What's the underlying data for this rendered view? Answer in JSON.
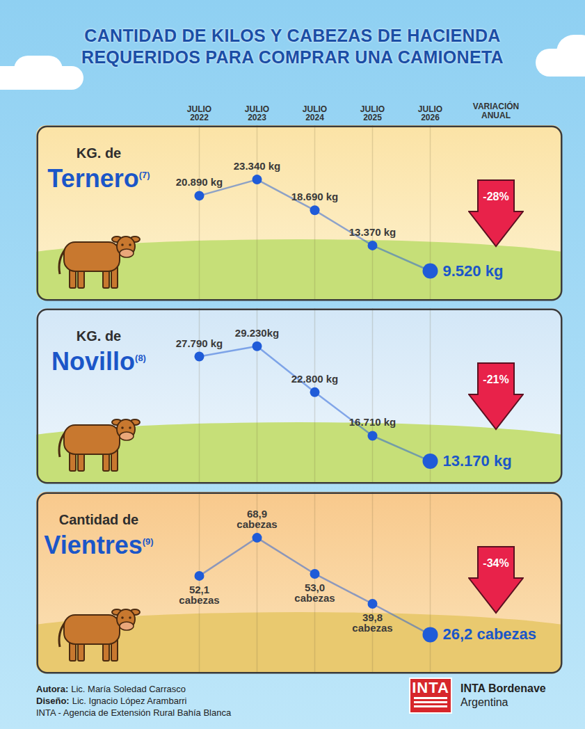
{
  "header": {
    "title": [
      "CANTIDAD DE KILOS Y CABEZAS DE HACIENDA",
      "REQUERIDOS PARA COMPRAR UNA CAMIONETA"
    ],
    "variation_header": "VARIACIÓN ANUAL"
  },
  "chart_data": [
    {
      "type": "line",
      "title_prefix": "KG. de",
      "title": "Ternero",
      "title_note": "(7)",
      "categories": [
        "JULIO 2022",
        "JULIO 2023",
        "JULIO 2024",
        "JULIO 2025",
        "JULIO 2026"
      ],
      "values": [
        20890,
        23340,
        18690,
        13370,
        9520
      ],
      "value_labels": [
        "20.890 kg",
        "23.340 kg",
        "18.690 kg",
        "13.370 kg",
        "9.520 kg"
      ],
      "data_labels": true,
      "color": "#1f5bd8",
      "marker": "circle",
      "grid": true,
      "ylim": [
        5000,
        31500
      ],
      "tick_labels": "x",
      "annual_variation": "-28%"
    },
    {
      "type": "line",
      "title_prefix": "KG. de",
      "title": "Novillo",
      "title_note": "(8)",
      "categories": [
        "JULIO 2022",
        "JULIO 2023",
        "JULIO 2024",
        "JULIO 2025",
        "JULIO 2026"
      ],
      "values": [
        27790,
        29230,
        22800,
        16710,
        13170
      ],
      "value_labels": [
        "27.790 kg",
        "29.230kg",
        "22.800 kg",
        "16.710 kg",
        "13.170 kg"
      ],
      "data_labels": true,
      "color": "#1f5bd8",
      "marker": "circle",
      "grid": true,
      "ylim": [
        10000,
        34500
      ],
      "tick_labels": false,
      "annual_variation": "-21%"
    },
    {
      "type": "line",
      "title_prefix": "Cantidad de",
      "title": "Vientres",
      "title_note": "(9)",
      "categories": [
        "JULIO 2022",
        "JULIO 2023",
        "JULIO 2024",
        "JULIO 2025",
        "JULIO 2026"
      ],
      "values": [
        52.1,
        68.9,
        53.0,
        39.8,
        26.2
      ],
      "value_labels": [
        "52,1 cabezas",
        "68,9 cabezas",
        "53,0 cabezas",
        "39,8 cabezas",
        "26,2 cabezas"
      ],
      "data_labels": true,
      "color": "#1f5bd8",
      "marker": "circle",
      "grid": true,
      "ylim": [
        9,
        89
      ],
      "tick_labels": false,
      "annual_variation": "-34%"
    }
  ],
  "footer": {
    "credits": [
      {
        "label": "Autora:",
        "text": "Lic. María Soledad Carrasco"
      },
      {
        "label": "Diseño:",
        "text": "Lic. Ignacio López Arambarri"
      },
      {
        "text": "INTA - Agencia de Extensión Rural Bahía Blanca"
      }
    ],
    "logo": {
      "mark": "INTA",
      "name": "INTA Bordenave",
      "country": "Argentina"
    }
  }
}
